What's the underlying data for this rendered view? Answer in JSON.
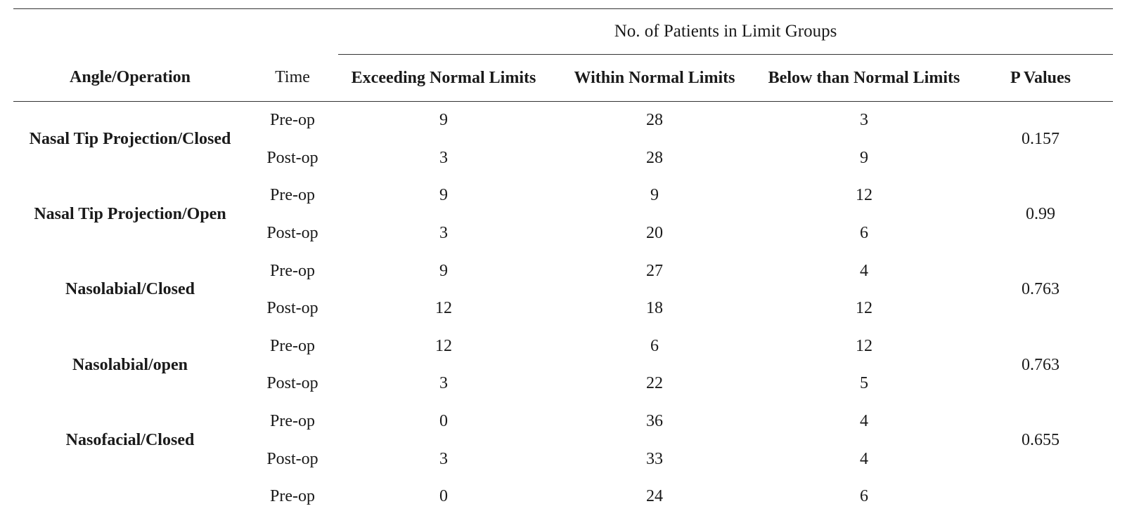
{
  "table": {
    "group_header": "No. of Patients in Limit Groups",
    "columns": {
      "angle": "Angle/Operation",
      "time": "Time",
      "exceeding": "Exceeding Normal Limits",
      "within": "Within Normal Limits",
      "below": "Below than Normal Limits",
      "p": "P Values"
    },
    "groups": [
      {
        "angle": "Nasal Tip Projection/Closed",
        "p": "0.157",
        "rows": [
          {
            "time": "Pre-op",
            "exceeding": "9",
            "within": "28",
            "below": "3"
          },
          {
            "time": "Post-op",
            "exceeding": "3",
            "within": "28",
            "below": "9"
          }
        ]
      },
      {
        "angle": "Nasal Tip Projection/Open",
        "p": "0.99",
        "rows": [
          {
            "time": "Pre-op",
            "exceeding": "9",
            "within": "9",
            "below": "12"
          },
          {
            "time": "Post-op",
            "exceeding": "3",
            "within": "20",
            "below": "6"
          }
        ]
      },
      {
        "angle": "Nasolabial/Closed",
        "p": "0.763",
        "rows": [
          {
            "time": "Pre-op",
            "exceeding": "9",
            "within": "27",
            "below": "4"
          },
          {
            "time": "Post-op",
            "exceeding": "12",
            "within": "18",
            "below": "12"
          }
        ]
      },
      {
        "angle": "Nasolabial/open",
        "p": "0.763",
        "rows": [
          {
            "time": "Pre-op",
            "exceeding": "12",
            "within": "6",
            "below": "12"
          },
          {
            "time": "Post-op",
            "exceeding": "3",
            "within": "22",
            "below": "5"
          }
        ]
      },
      {
        "angle": "Nasofacial/Closed",
        "p": "0.655",
        "rows": [
          {
            "time": "Pre-op",
            "exceeding": "0",
            "within": "36",
            "below": "4"
          },
          {
            "time": "Post-op",
            "exceeding": "3",
            "within": "33",
            "below": "4"
          }
        ]
      },
      {
        "angle": "",
        "p": "",
        "rows": [
          {
            "time": "Pre-op",
            "exceeding": "0",
            "within": "24",
            "below": "6"
          }
        ]
      }
    ]
  }
}
